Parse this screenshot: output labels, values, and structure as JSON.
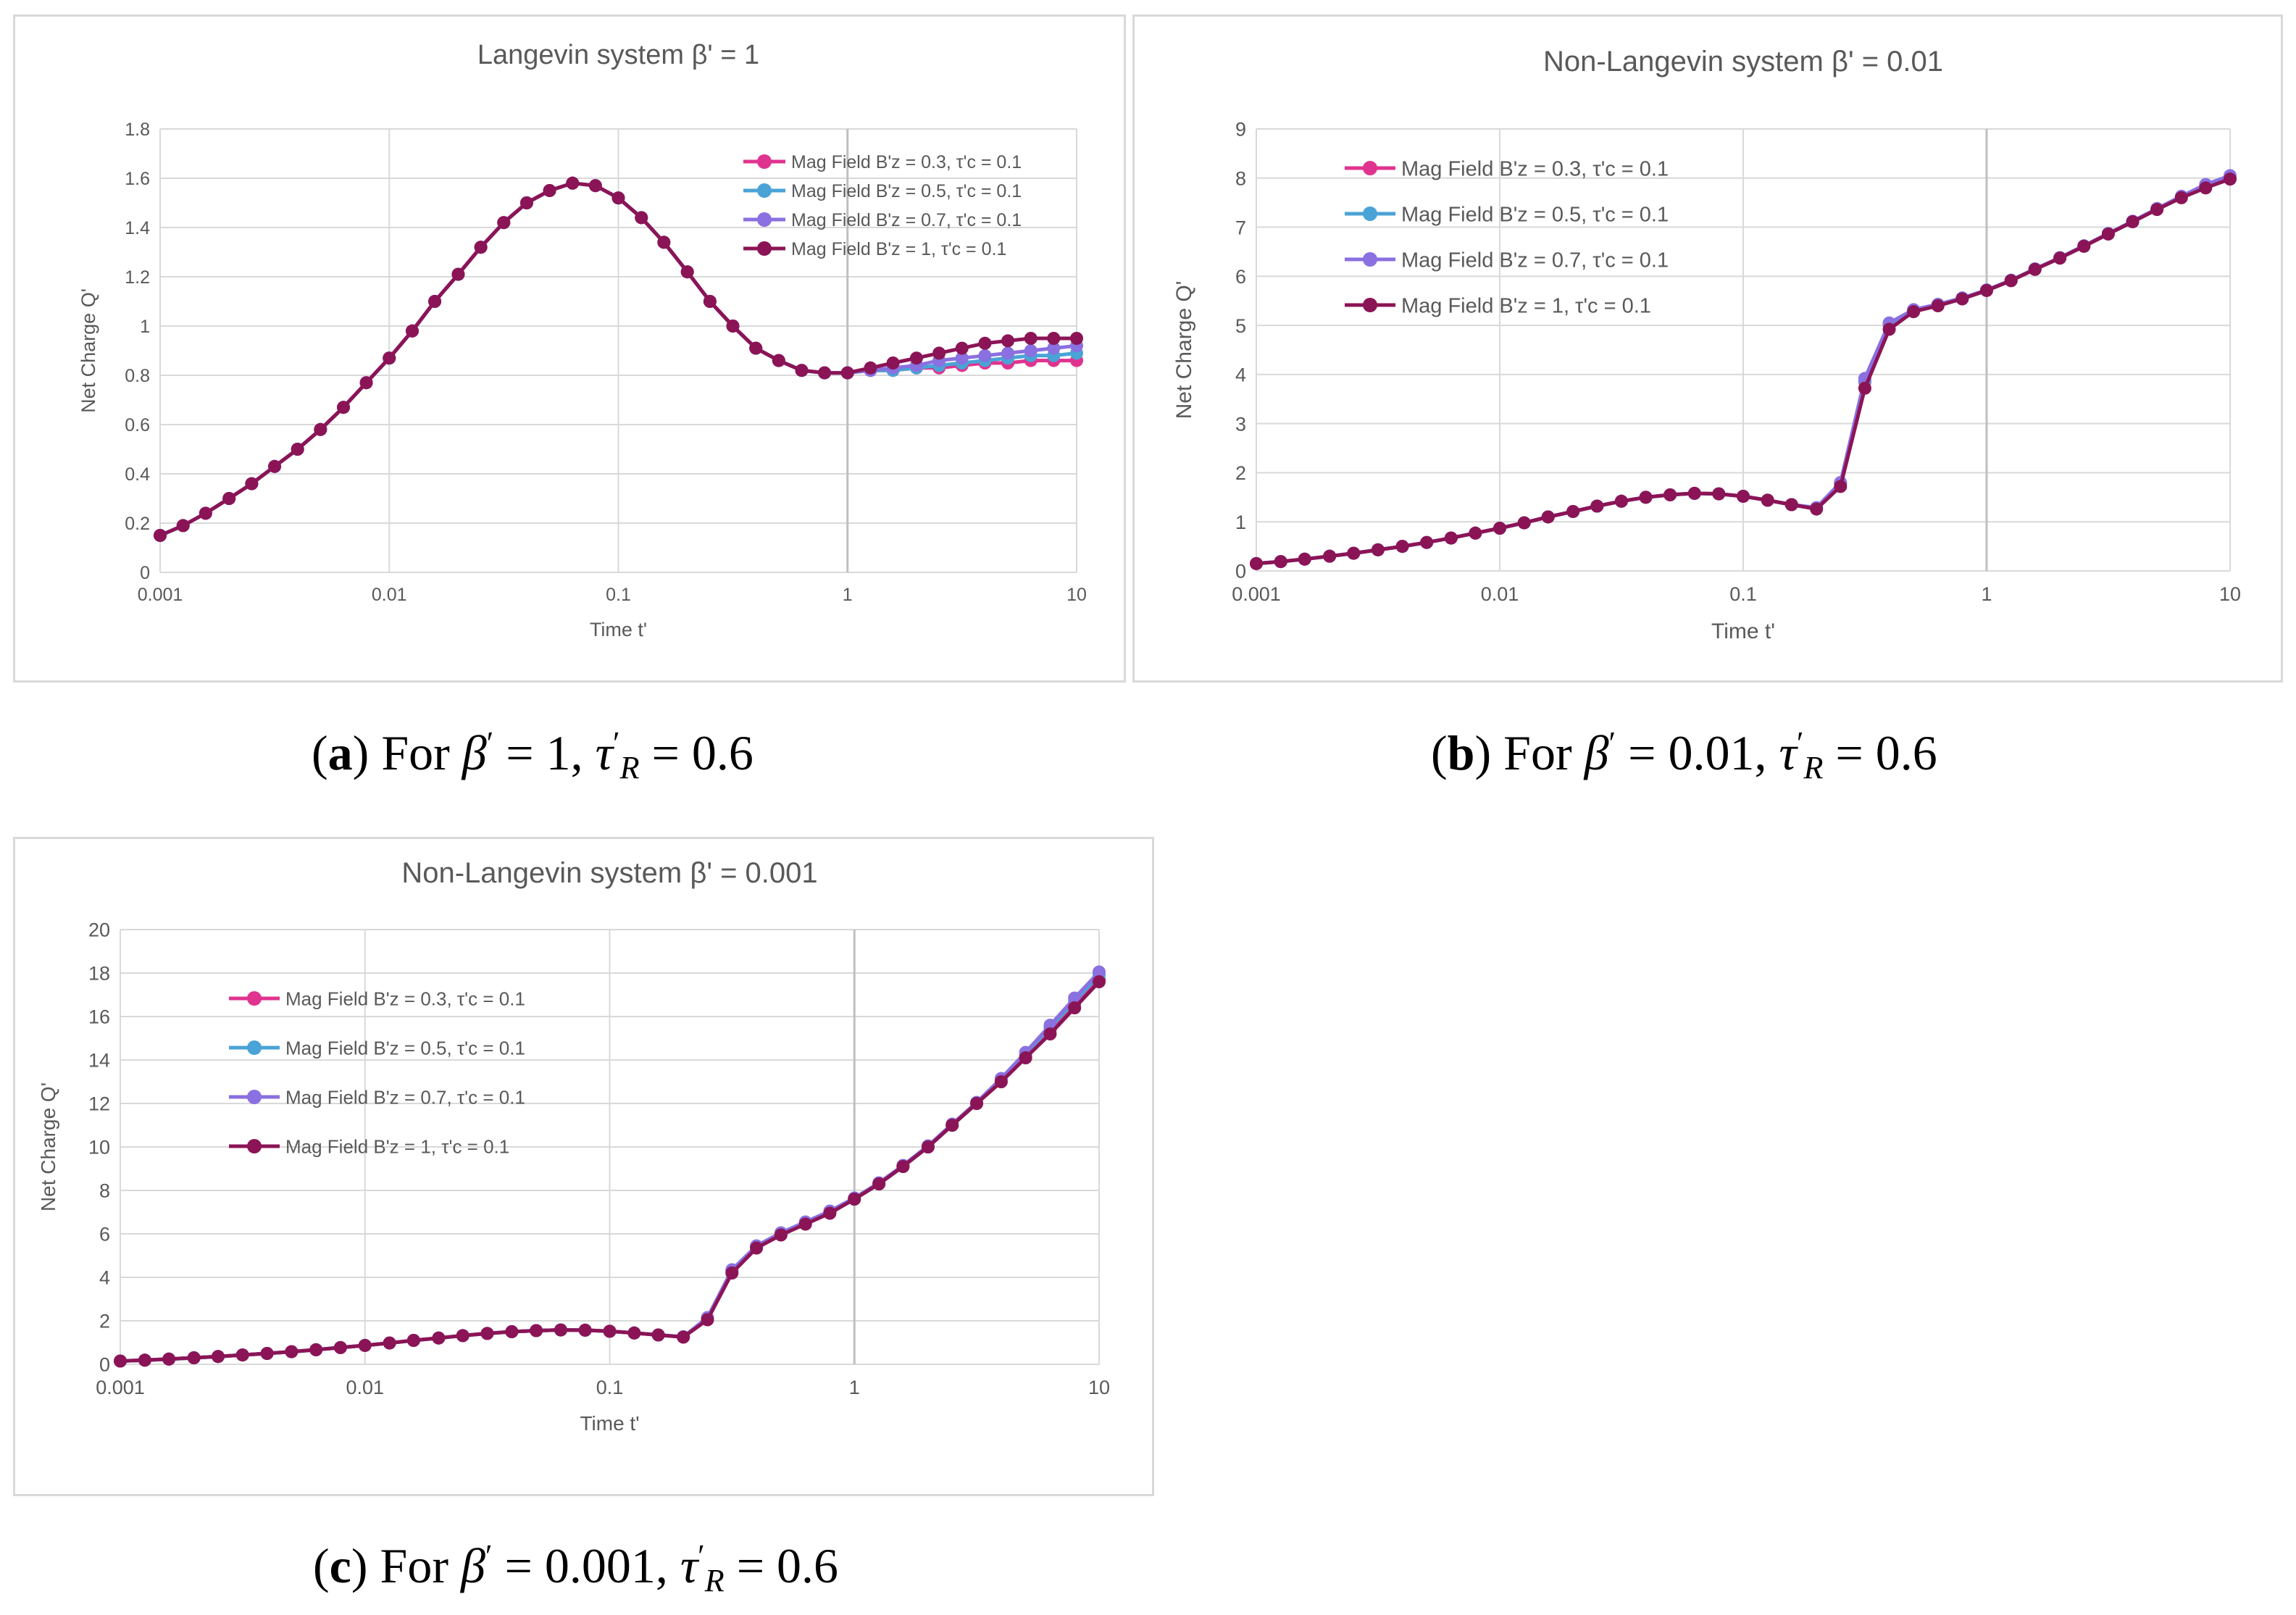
{
  "colors": {
    "B03": "#e0338f",
    "B05": "#4aa3d6",
    "B07": "#8a70e0",
    "B1": "#8b1456",
    "grid": "#d9d9d9",
    "axis_text": "#595959"
  },
  "captions": {
    "a": {
      "letter": "a",
      "pre": "For",
      "beta": "1",
      "tau": "0.6"
    },
    "b": {
      "letter": "b",
      "pre": "For",
      "beta": "0.01",
      "tau": "0.6"
    },
    "c": {
      "letter": "c",
      "pre": "For",
      "beta": "0.001",
      "tau": "0.6"
    }
  },
  "chart_data": [
    {
      "id": "a",
      "type": "line",
      "title": "Langevin system β' = 1",
      "xlabel": "Time t'",
      "ylabel": "Net Charge Q'",
      "xscale": "log",
      "xlim": [
        0.001,
        10
      ],
      "ylim": [
        0,
        1.8
      ],
      "yticks": [
        0,
        0.2,
        0.4,
        0.6,
        0.8,
        1,
        1.2,
        1.4,
        1.6,
        1.8
      ],
      "xticks": [
        0.001,
        0.01,
        0.1,
        1,
        10
      ],
      "xtick_labels": [
        "0.001",
        "0.01",
        "0.1",
        "1",
        "10"
      ],
      "grid": true,
      "legend_position": "top-right",
      "legend_layout": "compact",
      "x": [
        0.001,
        0.00126,
        0.00158,
        0.002,
        0.00251,
        0.00316,
        0.00398,
        0.00501,
        0.00631,
        0.00794,
        0.01,
        0.0126,
        0.0158,
        0.02,
        0.0251,
        0.0316,
        0.0398,
        0.0501,
        0.0631,
        0.0794,
        0.1,
        0.126,
        0.158,
        0.2,
        0.251,
        0.316,
        0.398,
        0.501,
        0.631,
        0.794,
        1,
        1.26,
        1.58,
        2,
        2.51,
        3.16,
        3.98,
        5.01,
        6.31,
        7.94,
        10
      ],
      "series": [
        {
          "name": "Mag Field B'z = 0.3, τ'c = 0.1",
          "color_key": "B03",
          "values": [
            0.15,
            0.19,
            0.24,
            0.3,
            0.36,
            0.43,
            0.5,
            0.58,
            0.67,
            0.77,
            0.87,
            0.98,
            1.1,
            1.21,
            1.32,
            1.42,
            1.5,
            1.55,
            1.58,
            1.57,
            1.52,
            1.44,
            1.34,
            1.22,
            1.1,
            1.0,
            0.91,
            0.86,
            0.82,
            0.81,
            0.81,
            0.82,
            0.82,
            0.83,
            0.83,
            0.84,
            0.85,
            0.85,
            0.86,
            0.86,
            0.86
          ]
        },
        {
          "name": "Mag Field B'z = 0.5, τ'c = 0.1",
          "color_key": "B05",
          "values": [
            0.15,
            0.19,
            0.24,
            0.3,
            0.36,
            0.43,
            0.5,
            0.58,
            0.67,
            0.77,
            0.87,
            0.98,
            1.1,
            1.21,
            1.32,
            1.42,
            1.5,
            1.55,
            1.58,
            1.57,
            1.52,
            1.44,
            1.34,
            1.22,
            1.1,
            1.0,
            0.91,
            0.86,
            0.82,
            0.81,
            0.81,
            0.82,
            0.82,
            0.83,
            0.84,
            0.85,
            0.86,
            0.87,
            0.88,
            0.88,
            0.89
          ]
        },
        {
          "name": "Mag Field B'z = 0.7, τ'c = 0.1",
          "color_key": "B07",
          "values": [
            0.15,
            0.19,
            0.24,
            0.3,
            0.36,
            0.43,
            0.5,
            0.58,
            0.67,
            0.77,
            0.87,
            0.98,
            1.1,
            1.21,
            1.32,
            1.42,
            1.5,
            1.55,
            1.58,
            1.57,
            1.52,
            1.44,
            1.34,
            1.22,
            1.1,
            1.0,
            0.91,
            0.86,
            0.82,
            0.81,
            0.81,
            0.82,
            0.83,
            0.84,
            0.86,
            0.87,
            0.88,
            0.89,
            0.9,
            0.91,
            0.92
          ]
        },
        {
          "name": "Mag Field B'z = 1, τ'c = 0.1",
          "color_key": "B1",
          "values": [
            0.15,
            0.19,
            0.24,
            0.3,
            0.36,
            0.43,
            0.5,
            0.58,
            0.67,
            0.77,
            0.87,
            0.98,
            1.1,
            1.21,
            1.32,
            1.42,
            1.5,
            1.55,
            1.58,
            1.57,
            1.52,
            1.44,
            1.34,
            1.22,
            1.1,
            1.0,
            0.91,
            0.86,
            0.82,
            0.81,
            0.81,
            0.83,
            0.85,
            0.87,
            0.89,
            0.91,
            0.93,
            0.94,
            0.95,
            0.95,
            0.95
          ]
        }
      ]
    },
    {
      "id": "b",
      "type": "line",
      "title": "Non-Langevin system β' = 0.01",
      "xlabel": "Time t'",
      "ylabel": "Net Charge Q'",
      "xscale": "log",
      "xlim": [
        0.001,
        10
      ],
      "ylim": [
        0,
        9
      ],
      "yticks": [
        0,
        1,
        2,
        3,
        4,
        5,
        6,
        7,
        8,
        9
      ],
      "xticks": [
        0.001,
        0.01,
        0.1,
        1,
        10
      ],
      "xtick_labels": [
        "0.001",
        "0.01",
        "0.1",
        "1",
        "10"
      ],
      "grid": true,
      "legend_position": "top-left",
      "legend_layout": "spaced",
      "x": [
        0.001,
        0.00126,
        0.00158,
        0.002,
        0.00251,
        0.00316,
        0.00398,
        0.00501,
        0.00631,
        0.00794,
        0.01,
        0.0126,
        0.0158,
        0.02,
        0.0251,
        0.0316,
        0.0398,
        0.0501,
        0.0631,
        0.0794,
        0.1,
        0.126,
        0.158,
        0.2,
        0.251,
        0.316,
        0.398,
        0.501,
        0.631,
        0.794,
        1,
        1.26,
        1.58,
        2,
        2.51,
        3.16,
        3.98,
        5.01,
        6.31,
        7.94,
        10
      ],
      "series": [
        {
          "name": "Mag Field B'z = 0.3, τ'c = 0.1",
          "color_key": "B03",
          "values": [
            0.15,
            0.19,
            0.24,
            0.3,
            0.36,
            0.43,
            0.5,
            0.58,
            0.67,
            0.77,
            0.87,
            0.98,
            1.1,
            1.21,
            1.32,
            1.42,
            1.5,
            1.55,
            1.58,
            1.57,
            1.52,
            1.44,
            1.35,
            1.28,
            1.78,
            3.85,
            5.0,
            5.3,
            5.42,
            5.55,
            5.72,
            5.92,
            6.15,
            6.38,
            6.62,
            6.87,
            7.12,
            7.37,
            7.62,
            7.85,
            8.02
          ]
        },
        {
          "name": "Mag Field B'z = 0.5, τ'c = 0.1",
          "color_key": "B05",
          "values": [
            0.15,
            0.19,
            0.24,
            0.3,
            0.36,
            0.43,
            0.5,
            0.58,
            0.67,
            0.77,
            0.87,
            0.98,
            1.1,
            1.21,
            1.32,
            1.42,
            1.5,
            1.55,
            1.58,
            1.57,
            1.52,
            1.44,
            1.35,
            1.28,
            1.79,
            3.88,
            5.02,
            5.31,
            5.42,
            5.55,
            5.72,
            5.92,
            6.15,
            6.38,
            6.62,
            6.87,
            7.12,
            7.37,
            7.62,
            7.86,
            8.03
          ]
        },
        {
          "name": "Mag Field B'z = 0.7, τ'c = 0.1",
          "color_key": "B07",
          "values": [
            0.15,
            0.19,
            0.24,
            0.3,
            0.36,
            0.43,
            0.5,
            0.58,
            0.67,
            0.77,
            0.87,
            0.98,
            1.1,
            1.21,
            1.32,
            1.42,
            1.5,
            1.55,
            1.58,
            1.57,
            1.52,
            1.44,
            1.35,
            1.29,
            1.8,
            3.92,
            5.05,
            5.32,
            5.43,
            5.56,
            5.72,
            5.92,
            6.15,
            6.38,
            6.62,
            6.87,
            7.12,
            7.38,
            7.63,
            7.87,
            8.05
          ]
        },
        {
          "name": "Mag Field B'z = 1, τ'c = 0.1",
          "color_key": "B1",
          "values": [
            0.15,
            0.19,
            0.24,
            0.3,
            0.36,
            0.43,
            0.5,
            0.58,
            0.67,
            0.77,
            0.87,
            0.98,
            1.1,
            1.21,
            1.32,
            1.42,
            1.5,
            1.55,
            1.58,
            1.57,
            1.52,
            1.44,
            1.35,
            1.26,
            1.72,
            3.72,
            4.92,
            5.28,
            5.4,
            5.54,
            5.71,
            5.91,
            6.14,
            6.37,
            6.61,
            6.86,
            7.11,
            7.36,
            7.6,
            7.8,
            7.98
          ]
        }
      ]
    },
    {
      "id": "c",
      "type": "line",
      "title": "Non-Langevin system β' = 0.001",
      "xlabel": "Time t'",
      "ylabel": "Net Charge Q'",
      "xscale": "log",
      "xlim": [
        0.001,
        10
      ],
      "ylim": [
        0,
        20
      ],
      "yticks": [
        0,
        2,
        4,
        6,
        8,
        10,
        12,
        14,
        16,
        18,
        20
      ],
      "xticks": [
        0.001,
        0.01,
        0.1,
        1,
        10
      ],
      "xtick_labels": [
        "0.001",
        "0.01",
        "0.1",
        "1",
        "10"
      ],
      "grid": true,
      "legend_position": "top-left",
      "legend_layout": "spaced",
      "x": [
        0.001,
        0.00126,
        0.00158,
        0.002,
        0.00251,
        0.00316,
        0.00398,
        0.00501,
        0.00631,
        0.00794,
        0.01,
        0.0126,
        0.0158,
        0.02,
        0.0251,
        0.0316,
        0.0398,
        0.0501,
        0.0631,
        0.0794,
        0.1,
        0.126,
        0.158,
        0.2,
        0.251,
        0.316,
        0.398,
        0.501,
        0.631,
        0.794,
        1,
        1.26,
        1.58,
        2,
        2.51,
        3.16,
        3.98,
        5.01,
        6.31,
        7.94,
        10
      ],
      "series": [
        {
          "name": "Mag Field B'z = 0.3, τ'c = 0.1",
          "color_key": "B03",
          "values": [
            0.15,
            0.19,
            0.24,
            0.3,
            0.36,
            0.43,
            0.5,
            0.58,
            0.67,
            0.77,
            0.87,
            0.98,
            1.1,
            1.21,
            1.32,
            1.42,
            1.5,
            1.55,
            1.58,
            1.57,
            1.52,
            1.44,
            1.35,
            1.26,
            2.1,
            4.3,
            5.4,
            6.0,
            6.5,
            7.0,
            7.6,
            8.3,
            9.1,
            10.0,
            11.0,
            12.0,
            13.0,
            14.2,
            15.4,
            16.6,
            17.7
          ]
        },
        {
          "name": "Mag Field B'z = 0.5, τ'c = 0.1",
          "color_key": "B05",
          "values": [
            0.15,
            0.19,
            0.24,
            0.3,
            0.36,
            0.43,
            0.5,
            0.58,
            0.67,
            0.77,
            0.87,
            0.98,
            1.1,
            1.21,
            1.32,
            1.42,
            1.5,
            1.55,
            1.58,
            1.57,
            1.52,
            1.44,
            1.35,
            1.26,
            2.1,
            4.3,
            5.4,
            6.0,
            6.5,
            7.0,
            7.6,
            8.3,
            9.1,
            10.0,
            11.0,
            12.0,
            13.1,
            14.3,
            15.5,
            16.7,
            17.9
          ]
        },
        {
          "name": "Mag Field B'z = 0.7, τ'c = 0.1",
          "color_key": "B07",
          "values": [
            0.15,
            0.19,
            0.24,
            0.3,
            0.36,
            0.43,
            0.5,
            0.58,
            0.67,
            0.77,
            0.87,
            0.98,
            1.1,
            1.21,
            1.32,
            1.42,
            1.5,
            1.55,
            1.58,
            1.57,
            1.52,
            1.44,
            1.35,
            1.27,
            2.15,
            4.35,
            5.45,
            6.05,
            6.55,
            7.05,
            7.65,
            8.35,
            9.15,
            10.05,
            11.05,
            12.05,
            13.15,
            14.35,
            15.6,
            16.85,
            18.05
          ]
        },
        {
          "name": "Mag Field B'z = 1, τ'c = 0.1",
          "color_key": "B1",
          "values": [
            0.15,
            0.19,
            0.24,
            0.3,
            0.36,
            0.43,
            0.5,
            0.58,
            0.67,
            0.77,
            0.87,
            0.98,
            1.1,
            1.21,
            1.32,
            1.42,
            1.5,
            1.55,
            1.58,
            1.57,
            1.52,
            1.44,
            1.35,
            1.25,
            2.05,
            4.2,
            5.35,
            5.95,
            6.45,
            6.95,
            7.6,
            8.3,
            9.1,
            10.0,
            11.0,
            12.0,
            13.0,
            14.1,
            15.2,
            16.4,
            17.6
          ]
        }
      ]
    }
  ]
}
